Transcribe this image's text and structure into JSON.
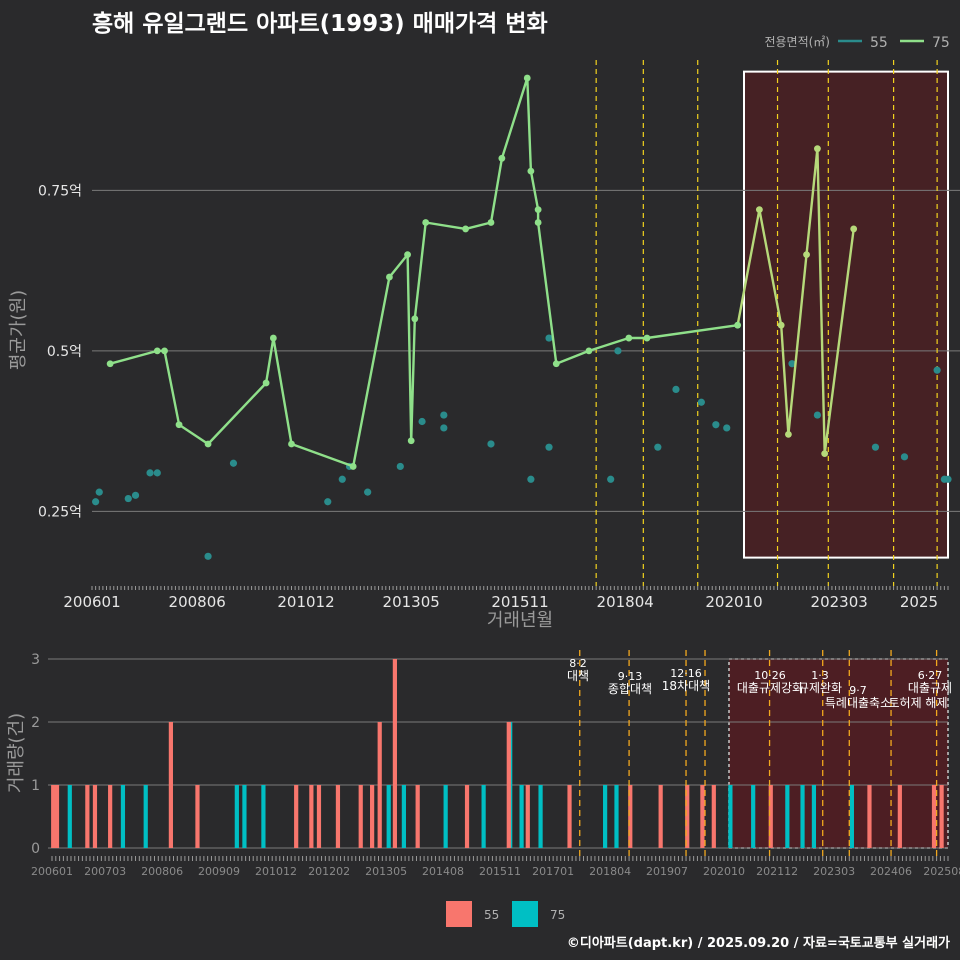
{
  "title": "흥해 유일그랜드 아파트(1993) 매매가격 변화",
  "footer": "©디아파트(dapt.kr) / 2025.09.20 / 자료=국토교통부 실거래가",
  "colors": {
    "background": "#2a2a2c",
    "series_55": "#2a8c8c",
    "series_75": "#8fe08a",
    "series_75_late": "#b6d97a",
    "bar_55": "#f8766d",
    "bar_75": "#00bfc4",
    "policy_line": "#f2d21e",
    "highlight": "#5c1a1f"
  },
  "chart_data": [
    {
      "type": "line",
      "ylabel": "평균가(원)",
      "xlabel": "거래년월",
      "y_ticks": [
        {
          "value": 0.25,
          "label": "0.25억"
        },
        {
          "value": 0.5,
          "label": "0.5억"
        },
        {
          "value": 0.75,
          "label": "0.75억"
        }
      ],
      "ylim": [
        0.14,
        0.95
      ],
      "x_ticks": [
        "200601",
        "200806",
        "201012",
        "201305",
        "201511",
        "201804",
        "202010",
        "202303",
        "2025"
      ],
      "x_range": [
        "2006-01",
        "2025-09"
      ],
      "legend": {
        "title": "전용면적(㎡)",
        "position": "top-right",
        "items": [
          "55",
          "75"
        ]
      },
      "policy_dates": [
        "2017-08",
        "2018-09",
        "2019-12",
        "2021-10",
        "2022-12",
        "2024-06",
        "2025-06"
      ],
      "highlight_range": [
        "2020-10",
        "2025-09"
      ],
      "series": [
        {
          "name": "55",
          "style": "points",
          "points": [
            [
              "2006-02",
              0.265
            ],
            [
              "2006-03",
              0.28
            ],
            [
              "2006-11",
              0.27
            ],
            [
              "2007-01",
              0.275
            ],
            [
              "2007-05",
              0.31
            ],
            [
              "2007-07",
              0.31
            ],
            [
              "2008-09",
              0.18
            ],
            [
              "2009-04",
              0.325
            ],
            [
              "2011-06",
              0.265
            ],
            [
              "2011-10",
              0.3
            ],
            [
              "2011-12",
              0.32
            ],
            [
              "2012-05",
              0.28
            ],
            [
              "2013-02",
              0.32
            ],
            [
              "2013-08",
              0.39
            ],
            [
              "2014-02",
              0.38
            ],
            [
              "2014-02",
              0.4
            ],
            [
              "2015-03",
              0.355
            ],
            [
              "2016-02",
              0.3
            ],
            [
              "2016-07",
              0.35
            ],
            [
              "2016-07",
              0.52
            ],
            [
              "2017-12",
              0.3
            ],
            [
              "2018-02",
              0.5
            ],
            [
              "2019-01",
              0.35
            ],
            [
              "2019-06",
              0.44
            ],
            [
              "2020-01",
              0.42
            ],
            [
              "2020-05",
              0.385
            ],
            [
              "2020-08",
              0.38
            ],
            [
              "2022-02",
              0.48
            ],
            [
              "2022-09",
              0.4
            ],
            [
              "2024-01",
              0.35
            ],
            [
              "2024-09",
              0.335
            ],
            [
              "2025-06",
              0.47
            ],
            [
              "2025-08",
              0.3
            ],
            [
              "2025-09",
              0.3
            ]
          ]
        },
        {
          "name": "75",
          "style": "line",
          "points": [
            [
              "2006-06",
              0.48
            ],
            [
              "2007-07",
              0.5
            ],
            [
              "2007-09",
              0.5
            ],
            [
              "2008-01",
              0.385
            ],
            [
              "2008-09",
              0.355
            ],
            [
              "2010-01",
              0.45
            ],
            [
              "2010-03",
              0.52
            ],
            [
              "2010-08",
              0.355
            ],
            [
              "2012-01",
              0.32
            ],
            [
              "2012-11",
              0.615
            ],
            [
              "2013-04",
              0.65
            ],
            [
              "2013-05",
              0.36
            ],
            [
              "2013-06",
              0.55
            ],
            [
              "2013-09",
              0.7
            ],
            [
              "2014-08",
              0.69
            ],
            [
              "2015-03",
              0.7
            ],
            [
              "2015-06",
              0.8
            ],
            [
              "2016-01",
              0.925
            ],
            [
              "2016-02",
              0.78
            ],
            [
              "2016-04",
              0.72
            ],
            [
              "2016-04",
              0.7
            ],
            [
              "2016-09",
              0.48
            ],
            [
              "2017-06",
              0.5
            ],
            [
              "2018-05",
              0.52
            ],
            [
              "2018-10",
              0.52
            ],
            [
              "2020-11",
              0.54
            ],
            [
              "2021-05",
              0.72
            ],
            [
              "2021-11",
              0.54
            ],
            [
              "2022-01",
              0.37
            ],
            [
              "2022-06",
              0.65
            ],
            [
              "2022-09",
              0.815
            ],
            [
              "2022-11",
              0.34
            ],
            [
              "2023-07",
              0.69
            ]
          ]
        }
      ]
    },
    {
      "type": "bar",
      "ylabel": "거래량(건)",
      "ylim": [
        0,
        3
      ],
      "y_ticks": [
        0,
        1,
        2,
        3
      ],
      "x_ticks": [
        "200601",
        "200703",
        "200806",
        "200909",
        "201012",
        "201202",
        "201305",
        "201408",
        "201511",
        "201701",
        "201804",
        "201907",
        "202010",
        "202112",
        "202303",
        "202406",
        "202508"
      ],
      "legend": {
        "position": "bottom",
        "items": [
          "55",
          "75"
        ]
      },
      "policy_labels": [
        {
          "date": "2017-08",
          "date_label": "8·2",
          "text": "대책"
        },
        {
          "date": "2018-09",
          "date_label": "9·13",
          "text": "종합대책"
        },
        {
          "date": "2019-12",
          "date_label": "12·16",
          "text": "18차대책"
        },
        {
          "date": "2021-10",
          "date_label": "10·26",
          "text": "대출규제강화"
        },
        {
          "date": "2023-01",
          "date_label": "1·3",
          "text": "규제완화"
        },
        {
          "date": "2023-09",
          "date_label": "9·7",
          "text": "특례대출축소"
        },
        {
          "date": "2024-06",
          "date_label": "",
          "text": "토허제 해제"
        },
        {
          "date": "2025-06",
          "date_label": "6·27",
          "text": "대출규제"
        }
      ],
      "bars": [
        [
          "2006-02",
          "55",
          1
        ],
        [
          "2006-03",
          "55",
          1
        ],
        [
          "2006-05",
          "75",
          1
        ],
        [
          "2006-11",
          "55",
          1
        ],
        [
          "2007-01",
          "55",
          1
        ],
        [
          "2007-05",
          "55",
          1
        ],
        [
          "2007-07",
          "75",
          1
        ],
        [
          "2008-01",
          "75",
          1
        ],
        [
          "2008-09",
          "55",
          2
        ],
        [
          "2009-04",
          "55",
          1
        ],
        [
          "2010-01",
          "75",
          1
        ],
        [
          "2010-03",
          "75",
          1
        ],
        [
          "2010-08",
          "75",
          1
        ],
        [
          "2011-06",
          "55",
          1
        ],
        [
          "2011-10",
          "55",
          1
        ],
        [
          "2011-12",
          "55",
          1
        ],
        [
          "2012-05",
          "55",
          1
        ],
        [
          "2012-11",
          "55",
          1
        ],
        [
          "2013-02",
          "55",
          1
        ],
        [
          "2013-04",
          "55",
          2
        ],
        [
          "2013-05",
          "75",
          1
        ],
        [
          "2013-08",
          "55",
          3
        ],
        [
          "2013-09",
          "75",
          1
        ],
        [
          "2014-02",
          "55",
          1
        ],
        [
          "2014-08",
          "75",
          1
        ],
        [
          "2015-03",
          "55",
          1
        ],
        [
          "2015-06",
          "75",
          1
        ],
        [
          "2016-01",
          "75",
          2
        ],
        [
          "2016-02",
          "55",
          2
        ],
        [
          "2016-04",
          "75",
          1
        ],
        [
          "2016-07",
          "55",
          1
        ],
        [
          "2016-09",
          "75",
          1
        ],
        [
          "2017-06",
          "55",
          1
        ],
        [
          "2018-02",
          "75",
          1
        ],
        [
          "2018-05",
          "75",
          1
        ],
        [
          "2018-10",
          "55",
          1
        ],
        [
          "2019-06",
          "55",
          1
        ],
        [
          "2020-01",
          "55",
          1
        ],
        [
          "2020-05",
          "55",
          1
        ],
        [
          "2020-08",
          "55",
          1
        ],
        [
          "2020-11",
          "75",
          1
        ],
        [
          "2021-05",
          "75",
          1
        ],
        [
          "2021-11",
          "55",
          1
        ],
        [
          "2022-02",
          "75",
          1
        ],
        [
          "2022-06",
          "75",
          1
        ],
        [
          "2022-09",
          "75",
          1
        ],
        [
          "2023-07",
          "75",
          1
        ],
        [
          "2024-01",
          "55",
          1
        ],
        [
          "2024-09",
          "55",
          1
        ],
        [
          "2025-06",
          "55",
          1
        ],
        [
          "2025-08",
          "55",
          1
        ]
      ]
    }
  ]
}
